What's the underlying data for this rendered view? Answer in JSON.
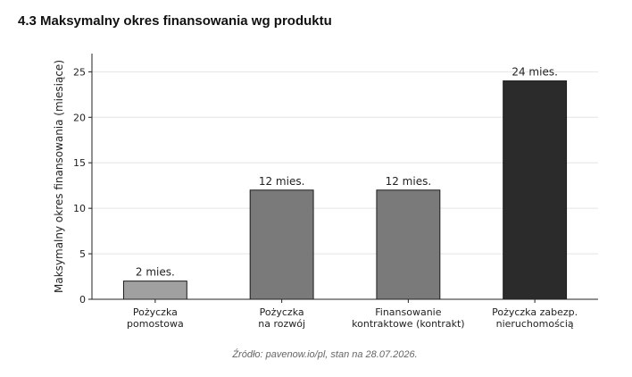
{
  "heading": "4.3 Maksymalny okres finansowania wg produktu",
  "source": "Źródło: pavenow.io/pl, stan na 28.07.2026.",
  "chart_data": {
    "type": "bar",
    "title": "",
    "xlabel": "",
    "ylabel": "Maksymalny okres finansowania (miesiące)",
    "categories": [
      [
        "Pożyczka",
        "pomostowa"
      ],
      [
        "Pożyczka",
        "na rozwój"
      ],
      [
        "Finansowanie",
        "kontraktowe (kontrakt)"
      ],
      [
        "Pożyczka zabezp.",
        "nieruchomością"
      ]
    ],
    "values": [
      2,
      12,
      12,
      24
    ],
    "data_labels": [
      "2 mies.",
      "12 mies.",
      "12 mies.",
      "24 mies."
    ],
    "bar_colors": [
      "#a0a0a0",
      "#7a7a7a",
      "#7a7a7a",
      "#2b2b2b"
    ],
    "ylim": [
      0,
      27
    ],
    "yticks": [
      0,
      5,
      10,
      15,
      20,
      25
    ],
    "grid": "horizontal",
    "legend": "none"
  }
}
